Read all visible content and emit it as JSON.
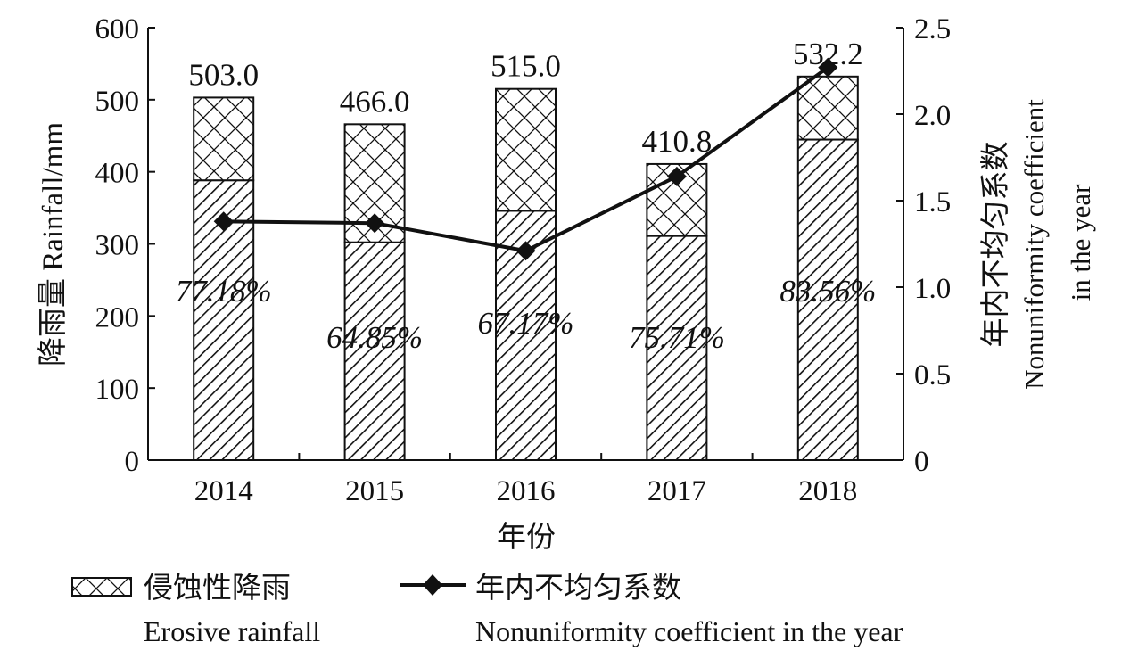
{
  "chart_data": {
    "type": "bar",
    "categories": [
      "2014",
      "2015",
      "2016",
      "2017",
      "2018"
    ],
    "totals": [
      503.0,
      466.0,
      515.0,
      410.8,
      532.2
    ],
    "total_labels": [
      "503.0",
      "466.0",
      "515.0",
      "410.8",
      "532.2"
    ],
    "erosive_percent": [
      77.18,
      64.85,
      67.17,
      75.71,
      83.56
    ],
    "percent_labels": [
      "77.18%",
      "64.85%",
      "67.17%",
      "75.71%",
      "83.56%"
    ],
    "nonuniformity": [
      1.38,
      1.37,
      1.21,
      1.64,
      2.27
    ],
    "xlabel": "年份",
    "ylabel_left": "降雨量 Rainfall/mm",
    "ylabel_right_cn": "年内不均匀系数",
    "ylabel_right_en_1": "Nonuniformity coefficient",
    "ylabel_right_en_2": "in the year",
    "ylim_left": [
      0,
      600
    ],
    "ylim_right": [
      0,
      2.5
    ],
    "yticks_left": [
      "0",
      "100",
      "200",
      "300",
      "400",
      "500",
      "600"
    ],
    "yticks_right": [
      "0",
      "0.5",
      "1.0",
      "1.5",
      "2.0",
      "2.5"
    ],
    "legend": {
      "erosive_cn": "侵蚀性降雨",
      "erosive_en": "Erosive rainfall",
      "coef_cn": "年内不均匀系数",
      "coef_en": "Nonuniformity coefficient in the year"
    },
    "colors": {
      "ink": "#111111",
      "background": "#ffffff"
    }
  }
}
